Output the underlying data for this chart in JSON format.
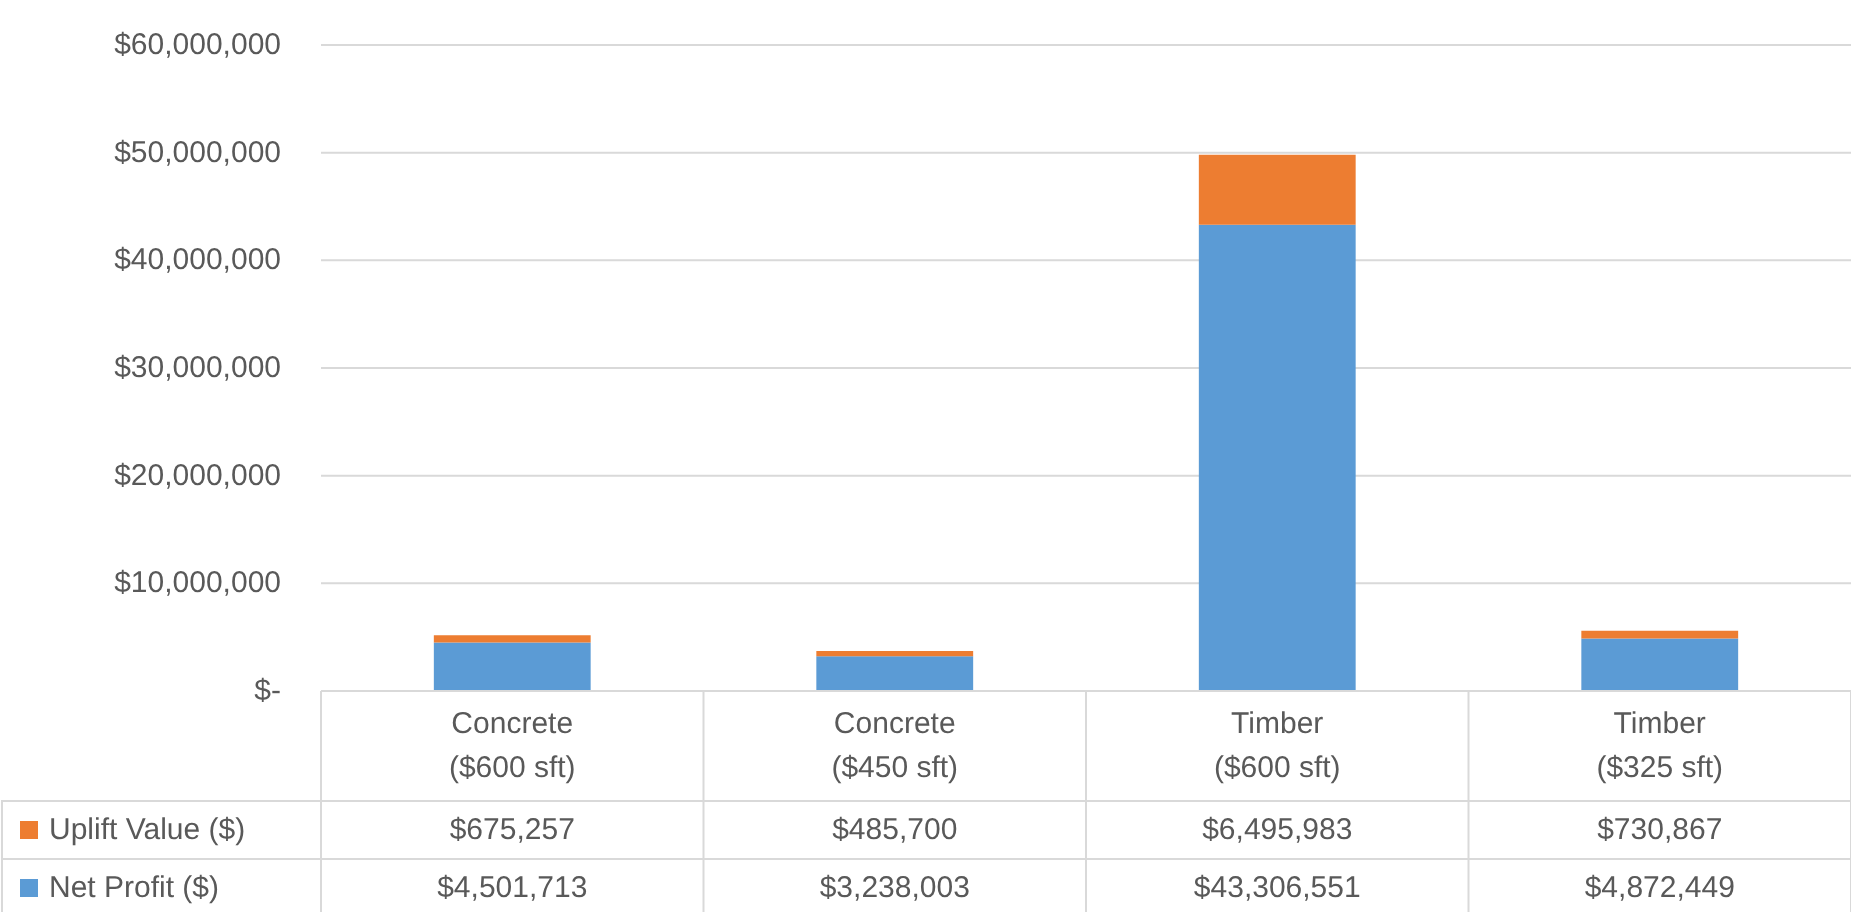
{
  "chart_data": {
    "type": "bar",
    "stacked": true,
    "categories": [
      "Concrete\n($600 sft)",
      "Concrete\n($450 sft)",
      "Timber\n($600 sft)",
      "Timber\n($325 sft)"
    ],
    "series": [
      {
        "name": "Net Profit ($)",
        "color": "#5b9bd5",
        "values": [
          4501713,
          3238003,
          43306551,
          4872449
        ],
        "value_labels": [
          "$4,501,713",
          "$3,238,003",
          "$43,306,551",
          "$4,872,449"
        ]
      },
      {
        "name": "Uplift Value ($)",
        "color": "#ed7d31",
        "values": [
          675257,
          485700,
          6495983,
          730867
        ],
        "value_labels": [
          "$675,257",
          "$485,700",
          "$6,495,983",
          "$730,867"
        ]
      }
    ],
    "ylim": [
      0,
      60000000
    ],
    "yticks": [
      {
        "value": 0,
        "label": "$-"
      },
      {
        "value": 10000000,
        "label": "$10,000,000"
      },
      {
        "value": 20000000,
        "label": "$20,000,000"
      },
      {
        "value": 30000000,
        "label": "$30,000,000"
      },
      {
        "value": 40000000,
        "label": "$40,000,000"
      },
      {
        "value": 50000000,
        "label": "$50,000,000"
      },
      {
        "value": 60000000,
        "label": "$60,000,000"
      }
    ],
    "grid": "y",
    "legend": "bottom"
  }
}
